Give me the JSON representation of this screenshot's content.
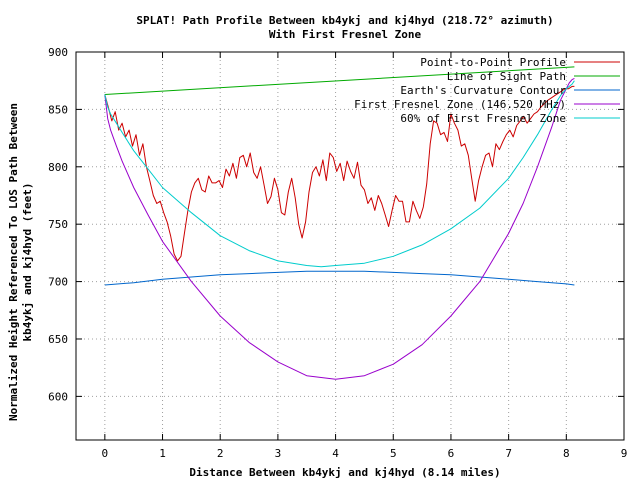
{
  "chart_data": {
    "type": "line",
    "title": "SPLAT! Path Profile Between kb4ykj and kj4hyd (218.72° azimuth)",
    "subtitle": "With First Fresnel Zone",
    "xlabel": "Distance Between kb4ykj and kj4hyd (8.14 miles)",
    "ylabel_line1": "Normalized Height Referenced To LOS Path Between",
    "ylabel_line2": "kb4ykj and kj4hyd (feet)",
    "xlim": [
      -0.5,
      9
    ],
    "ylim": [
      562,
      900
    ],
    "x_ticks": [
      0,
      1,
      2,
      3,
      4,
      5,
      6,
      7,
      8,
      9
    ],
    "y_ticks": [
      600,
      650,
      700,
      750,
      800,
      850,
      900
    ],
    "grid": true,
    "legend_position": "top-right",
    "series": [
      {
        "name": "Point-to-Point Profile",
        "color": "#cc0000",
        "x": [
          0.0,
          0.06,
          0.12,
          0.18,
          0.24,
          0.3,
          0.36,
          0.42,
          0.48,
          0.54,
          0.6,
          0.66,
          0.72,
          0.78,
          0.84,
          0.9,
          0.96,
          1.02,
          1.08,
          1.14,
          1.2,
          1.26,
          1.32,
          1.38,
          1.44,
          1.5,
          1.56,
          1.62,
          1.68,
          1.74,
          1.8,
          1.86,
          1.92,
          1.98,
          2.04,
          2.1,
          2.16,
          2.22,
          2.28,
          2.34,
          2.4,
          2.46,
          2.52,
          2.58,
          2.64,
          2.7,
          2.76,
          2.82,
          2.88,
          2.94,
          3.0,
          3.06,
          3.12,
          3.18,
          3.24,
          3.3,
          3.36,
          3.42,
          3.48,
          3.54,
          3.6,
          3.66,
          3.72,
          3.78,
          3.84,
          3.9,
          3.96,
          4.02,
          4.08,
          4.14,
          4.2,
          4.26,
          4.32,
          4.38,
          4.44,
          4.5,
          4.56,
          4.62,
          4.68,
          4.74,
          4.8,
          4.86,
          4.92,
          4.98,
          5.04,
          5.1,
          5.16,
          5.22,
          5.28,
          5.34,
          5.4,
          5.46,
          5.52,
          5.58,
          5.64,
          5.7,
          5.76,
          5.82,
          5.88,
          5.94,
          6.0,
          6.06,
          6.12,
          6.18,
          6.24,
          6.3,
          6.36,
          6.42,
          6.48,
          6.54,
          6.6,
          6.66,
          6.72,
          6.78,
          6.84,
          6.9,
          6.96,
          7.02,
          7.08,
          7.14,
          7.2,
          7.26,
          7.32,
          7.38,
          7.44,
          7.5,
          7.56,
          7.62,
          7.68,
          7.74,
          7.8,
          7.86,
          7.92,
          7.98,
          8.04,
          8.1,
          8.14
        ],
        "values": [
          863,
          852,
          840,
          848,
          832,
          838,
          826,
          832,
          818,
          828,
          810,
          820,
          800,
          788,
          775,
          768,
          770,
          760,
          752,
          740,
          724,
          718,
          722,
          742,
          762,
          778,
          786,
          790,
          780,
          778,
          792,
          786,
          786,
          788,
          782,
          798,
          792,
          803,
          790,
          808,
          810,
          800,
          812,
          795,
          790,
          800,
          784,
          768,
          774,
          790,
          780,
          760,
          758,
          778,
          790,
          773,
          750,
          738,
          752,
          778,
          795,
          800,
          792,
          806,
          788,
          812,
          808,
          796,
          803,
          788,
          805,
          796,
          790,
          804,
          784,
          780,
          768,
          773,
          762,
          775,
          768,
          758,
          748,
          762,
          775,
          770,
          770,
          752,
          752,
          770,
          762,
          755,
          765,
          785,
          820,
          840,
          838,
          828,
          830,
          822,
          846,
          838,
          832,
          818,
          820,
          810,
          790,
          770,
          788,
          800,
          810,
          812,
          800,
          820,
          815,
          822,
          828,
          832,
          826,
          836,
          840,
          844,
          838,
          842,
          846,
          848,
          852,
          855,
          858,
          860,
          862,
          864,
          866,
          868,
          868,
          870,
          870
        ]
      },
      {
        "name": "Line of Sight Path",
        "color": "#00aa00",
        "x": [
          0,
          8.14
        ],
        "values": [
          863,
          887
        ]
      },
      {
        "name": "Earth's Curvature Contour",
        "color": "#0066cc",
        "x": [
          0,
          0.5,
          1,
          1.5,
          2,
          2.5,
          3,
          3.5,
          4,
          4.5,
          5,
          5.5,
          6,
          6.5,
          7,
          7.5,
          8,
          8.14
        ],
        "values": [
          697,
          699,
          702,
          704,
          706,
          707,
          708,
          709,
          709,
          709,
          708,
          707,
          706,
          704,
          702,
          700,
          698,
          697
        ]
      },
      {
        "name": "First Fresnel Zone (146.520 MHz)",
        "color": "#9900cc",
        "x": [
          0,
          0.05,
          0.1,
          0.2,
          0.3,
          0.5,
          0.75,
          1,
          1.5,
          2,
          2.5,
          3,
          3.5,
          4,
          4.5,
          5,
          5.5,
          6,
          6.5,
          7,
          7.25,
          7.5,
          7.75,
          7.9,
          8,
          8.05,
          8.1,
          8.14
        ],
        "values": [
          863,
          842,
          832,
          818,
          805,
          782,
          758,
          735,
          700,
          670,
          647,
          630,
          618,
          615,
          618,
          628,
          645,
          670,
          700,
          742,
          768,
          800,
          835,
          858,
          868,
          873,
          876,
          877
        ]
      },
      {
        "name": "60% of First Fresnel Zone",
        "color": "#00cccc",
        "x": [
          0,
          0.05,
          0.1,
          0.2,
          0.3,
          0.5,
          0.75,
          1,
          1.5,
          2,
          2.5,
          3,
          3.5,
          3.75,
          4,
          4.5,
          5,
          5.5,
          6,
          6.5,
          7,
          7.25,
          7.5,
          7.75,
          7.9,
          8,
          8.1,
          8.14
        ],
        "values": [
          863,
          852,
          846,
          838,
          830,
          814,
          798,
          782,
          760,
          740,
          727,
          718,
          714,
          713,
          714,
          716,
          722,
          732,
          746,
          764,
          790,
          808,
          828,
          850,
          862,
          868,
          872,
          875
        ]
      }
    ]
  }
}
